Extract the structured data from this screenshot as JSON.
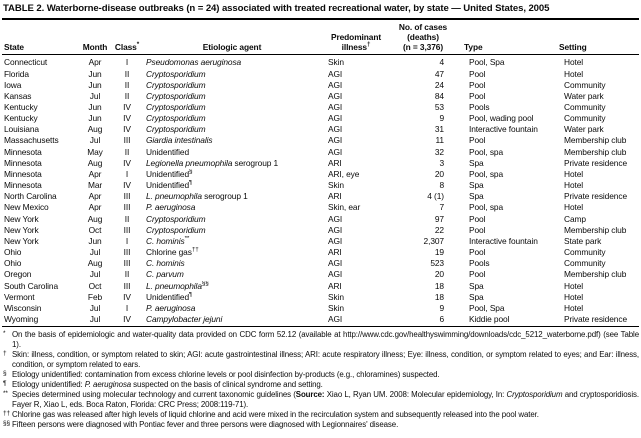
{
  "title": "TABLE 2. Waterborne-disease outbreaks (n = 24) associated with treated recreational water, by state — United States, 2005",
  "columns": {
    "state": "State",
    "month": "Month",
    "class_label": "Class",
    "class_sup": "*",
    "agent": "Etiologic agent",
    "illness_line1": "Predominant",
    "illness_line2": "illness",
    "illness_sup": "†",
    "cases_line1": "No. of cases",
    "cases_line2": "(deaths)",
    "cases_line3": "(n = 3,376)",
    "type": "Type",
    "setting": "Setting"
  },
  "rows": [
    {
      "state": "Connecticut",
      "month": "Apr",
      "class": "I",
      "agent_i": "Pseudomonas aeruginosa",
      "agent_n": "",
      "agent_sup": "",
      "illness": "Skin",
      "cases": "4",
      "type": "Pool, Spa",
      "setting": "Hotel"
    },
    {
      "state": "Florida",
      "month": "Jun",
      "class": "II",
      "agent_i": "Cryptosporidium",
      "agent_n": "",
      "agent_sup": "",
      "illness": "AGI",
      "cases": "47",
      "type": "Pool",
      "setting": "Hotel"
    },
    {
      "state": "Iowa",
      "month": "Jun",
      "class": "II",
      "agent_i": "Cryptosporidium",
      "agent_n": "",
      "agent_sup": "",
      "illness": "AGI",
      "cases": "24",
      "type": "Pool",
      "setting": "Community"
    },
    {
      "state": "Kansas",
      "month": "Jul",
      "class": "II",
      "agent_i": "Cryptosporidium",
      "agent_n": "",
      "agent_sup": "",
      "illness": "AGI",
      "cases": "84",
      "type": "Pool",
      "setting": "Water park"
    },
    {
      "state": "Kentucky",
      "month": "Jun",
      "class": "IV",
      "agent_i": "Cryptosporidium",
      "agent_n": "",
      "agent_sup": "",
      "illness": "AGI",
      "cases": "53",
      "type": "Pools",
      "setting": "Community"
    },
    {
      "state": "Kentucky",
      "month": "Jun",
      "class": "IV",
      "agent_i": "Cryptosporidium",
      "agent_n": "",
      "agent_sup": "",
      "illness": "AGI",
      "cases": "9",
      "type": "Pool, wading pool",
      "setting": "Community"
    },
    {
      "state": "Louisiana",
      "month": "Aug",
      "class": "IV",
      "agent_i": "Cryptosporidium",
      "agent_n": "",
      "agent_sup": "",
      "illness": "AGI",
      "cases": "31",
      "type": "Interactive fountain",
      "setting": "Water park"
    },
    {
      "state": "Massachusetts",
      "month": "Jul",
      "class": "III",
      "agent_i": "Giardia intestinalis",
      "agent_n": "",
      "agent_sup": "",
      "illness": "AGI",
      "cases": "11",
      "type": "Pool",
      "setting": "Membership club"
    },
    {
      "state": "Minnesota",
      "month": "May",
      "class": "II",
      "agent_i": "",
      "agent_n": "Unidentified",
      "agent_sup": "",
      "illness": "AGI",
      "cases": "32",
      "type": "Pool, spa",
      "setting": "Membership club"
    },
    {
      "state": "Minnesota",
      "month": "Aug",
      "class": "IV",
      "agent_i": "Legionella pneumophila",
      "agent_n": " serogroup 1",
      "agent_sup": "",
      "illness": "ARI",
      "cases": "3",
      "type": "Spa",
      "setting": "Private residence"
    },
    {
      "state": "Minnesota",
      "month": "Apr",
      "class": "I",
      "agent_i": "",
      "agent_n": "Unidentified",
      "agent_sup": "§",
      "illness": "ARI, eye",
      "cases": "20",
      "type": "Pool, spa",
      "setting": "Hotel"
    },
    {
      "state": "Minnesota",
      "month": "Mar",
      "class": "IV",
      "agent_i": "",
      "agent_n": "Unidentified",
      "agent_sup": "¶",
      "illness": "Skin",
      "cases": "8",
      "type": "Spa",
      "setting": "Hotel"
    },
    {
      "state": "North Carolina",
      "month": "Apr",
      "class": "III",
      "agent_i": "L. pneumophila",
      "agent_n": " serogroup 1",
      "agent_sup": "",
      "illness": "ARI",
      "cases": "4 (1)",
      "type": "Spa",
      "setting": "Private residence"
    },
    {
      "state": "New Mexico",
      "month": "Apr",
      "class": "III",
      "agent_i": "P. aeruginosa",
      "agent_n": "",
      "agent_sup": "",
      "illness": "Skin, ear",
      "cases": "7",
      "type": "Pool, spa",
      "setting": "Hotel"
    },
    {
      "state": "New York",
      "month": "Aug",
      "class": "II",
      "agent_i": "Cryptosporidium",
      "agent_n": "",
      "agent_sup": "",
      "illness": "AGI",
      "cases": "97",
      "type": "Pool",
      "setting": "Camp"
    },
    {
      "state": "New York",
      "month": "Oct",
      "class": "III",
      "agent_i": "Cryptosporidium",
      "agent_n": "",
      "agent_sup": "",
      "illness": "AGI",
      "cases": "22",
      "type": "Pool",
      "setting": "Membership club"
    },
    {
      "state": "New York",
      "month": "Jun",
      "class": "I",
      "agent_i": "C. hominis",
      "agent_n": "",
      "agent_sup": "**",
      "illness": "AGI",
      "cases": "2,307",
      "type": "Interactive fountain",
      "setting": "State park"
    },
    {
      "state": "Ohio",
      "month": "Jul",
      "class": "III",
      "agent_i": "",
      "agent_n": "Chlorine gas",
      "agent_sup": "††",
      "illness": "ARI",
      "cases": "19",
      "type": "Pool",
      "setting": "Community"
    },
    {
      "state": "Ohio",
      "month": "Aug",
      "class": "III",
      "agent_i": "C. hominis",
      "agent_n": "",
      "agent_sup": "",
      "illness": "AGI",
      "cases": "523",
      "type": "Pools",
      "setting": "Community"
    },
    {
      "state": "Oregon",
      "month": "Jul",
      "class": "II",
      "agent_i": "C. parvum",
      "agent_n": "",
      "agent_sup": "",
      "illness": "AGI",
      "cases": "20",
      "type": "Pool",
      "setting": "Membership club"
    },
    {
      "state": "South Carolina",
      "month": "Oct",
      "class": "III",
      "agent_i": "L. pneumophila",
      "agent_n": "",
      "agent_sup": "§§",
      "illness": "ARI",
      "cases": "18",
      "type": "Spa",
      "setting": "Hotel"
    },
    {
      "state": "Vermont",
      "month": "Feb",
      "class": "IV",
      "agent_i": "",
      "agent_n": "Unidentified",
      "agent_sup": "¶",
      "illness": "Skin",
      "cases": "18",
      "type": "Spa",
      "setting": "Hotel"
    },
    {
      "state": "Wisconsin",
      "month": "Jul",
      "class": "I",
      "agent_i": "P. aeruginosa",
      "agent_n": "",
      "agent_sup": "",
      "illness": "Skin",
      "cases": "9",
      "type": "Pool, Spa",
      "setting": "Hotel"
    },
    {
      "state": "Wyoming",
      "month": "Jul",
      "class": "IV",
      "agent_i": "Campylobacter jejuni",
      "agent_n": "",
      "agent_sup": "",
      "illness": "AGI",
      "cases": "6",
      "type": "Kiddie pool",
      "setting": "Private residence"
    }
  ],
  "footnotes": [
    {
      "marker": "*",
      "segments": [
        {
          "t": "On the basis of epidemiologic and water-quality data provided on CDC form 52.12 (available at http://www.cdc.gov/healthyswimming/downloads/​cdc_5212_waterborne.pdf) (see Table 1)."
        }
      ]
    },
    {
      "marker": "†",
      "segments": [
        {
          "t": "Skin: illness, condition, or symptom related to skin; AGI: acute gastrointestinal illness; ARI: acute respiratory illness; Eye: illness, condition, or symptom related to eyes; and Ear: illness, condition, or symptom related to ears."
        }
      ]
    },
    {
      "marker": "§",
      "segments": [
        {
          "t": "Etiology unidentified: contamination from excess chlorine levels or pool disinfection by-products (e.g., chloramines) suspected."
        }
      ]
    },
    {
      "marker": "¶",
      "segments": [
        {
          "t": "Etiology unidentified: "
        },
        {
          "t": "P. aeruginosa",
          "s": "i"
        },
        {
          "t": " suspected on the basis of clinical syndrome and setting."
        }
      ]
    },
    {
      "marker": "**",
      "segments": [
        {
          "t": "Species determined using molecular technology and current taxonomic guidelines ("
        },
        {
          "t": "Source:",
          "s": "b"
        },
        {
          "t": " Xiao L, Ryan UM. 2008: Molecular epidemiology, In: "
        },
        {
          "t": "Cryptosporidium",
          "s": "i"
        },
        {
          "t": " and cryptosporidiosis. Fayer R, Xiao L, eds. Boca Raton, Florida: CRC Press; 2008:119-71)."
        }
      ]
    },
    {
      "marker": "††",
      "segments": [
        {
          "t": "Chlorine gas was released after high levels of liquid chlorine and acid were mixed in the recirculation system and subsequently released into the pool water."
        }
      ]
    },
    {
      "marker": "§§",
      "segments": [
        {
          "t": "Fifteen persons were diagnosed with Pontiac fever and three persons were diagnosed with Legionnaires' disease."
        }
      ]
    }
  ]
}
